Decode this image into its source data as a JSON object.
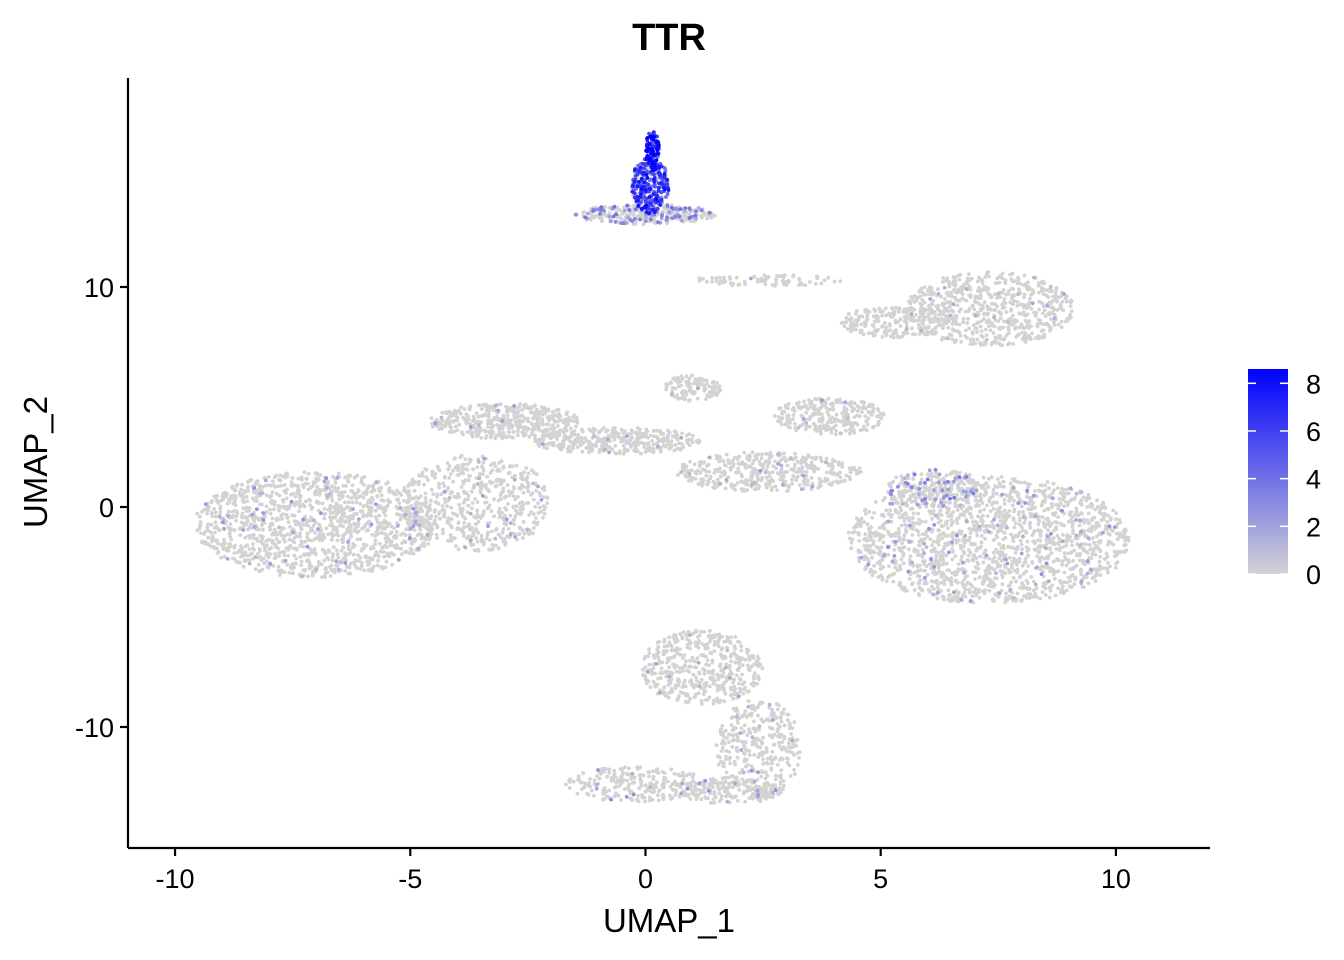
{
  "chart_data": {
    "type": "scatter",
    "title": "TTR",
    "xlabel": "UMAP_1",
    "ylabel": "UMAP_2",
    "xlim": [
      -11,
      12
    ],
    "ylim": [
      -15.5,
      19.5
    ],
    "x_ticks": [
      -10,
      -5,
      0,
      5,
      10
    ],
    "x_tick_labels": [
      "-10",
      "-5",
      "0",
      "5",
      "10"
    ],
    "y_ticks": [
      -10,
      0,
      10
    ],
    "y_tick_labels": [
      "-10",
      "0",
      "10"
    ],
    "grid": false,
    "legend": {
      "position": "right",
      "type": "colorbar",
      "min": 0,
      "max": 8.6,
      "ticks": [
        0,
        2,
        4,
        6,
        8
      ],
      "tick_labels": [
        "0",
        "2",
        "4",
        "6",
        "8"
      ],
      "color_low": "#d3d3d3",
      "color_high": "#0000ff"
    },
    "clusters": [
      {
        "cx": -7.0,
        "cy": -0.8,
        "rx": 2.6,
        "ry": 2.4,
        "n": 1300,
        "expr_frac": 0.05,
        "expr_mean": 1.8
      },
      {
        "cx": -3.6,
        "cy": 0.2,
        "rx": 1.6,
        "ry": 2.2,
        "n": 550,
        "expr_frac": 0.04,
        "expr_mean": 1.5
      },
      {
        "cx": -3.0,
        "cy": 3.9,
        "rx": 1.6,
        "ry": 0.8,
        "n": 420,
        "expr_frac": 0.03,
        "expr_mean": 1.6
      },
      {
        "cx": -0.6,
        "cy": 3.0,
        "rx": 1.8,
        "ry": 0.6,
        "n": 350,
        "expr_frac": 0.03,
        "expr_mean": 1.4
      },
      {
        "cx": 1.0,
        "cy": 5.4,
        "rx": 0.6,
        "ry": 0.6,
        "n": 110,
        "expr_frac": 0.02,
        "expr_mean": 1.4
      },
      {
        "cx": 2.6,
        "cy": 1.6,
        "rx": 2.0,
        "ry": 0.9,
        "n": 400,
        "expr_frac": 0.04,
        "expr_mean": 1.6
      },
      {
        "cx": 7.3,
        "cy": -1.5,
        "rx": 3.0,
        "ry": 2.9,
        "n": 1700,
        "expr_frac": 0.06,
        "expr_mean": 1.9
      },
      {
        "cx": 6.2,
        "cy": 0.8,
        "rx": 1.1,
        "ry": 0.9,
        "n": 200,
        "expr_frac": 0.18,
        "expr_mean": 2.6
      },
      {
        "cx": 3.9,
        "cy": 4.1,
        "rx": 1.2,
        "ry": 0.85,
        "n": 260,
        "expr_frac": 0.04,
        "expr_mean": 1.5
      },
      {
        "cx": 7.3,
        "cy": 9.0,
        "rx": 1.8,
        "ry": 1.7,
        "n": 650,
        "expr_frac": 0.03,
        "expr_mean": 1.4
      },
      {
        "cx": 5.3,
        "cy": 8.4,
        "rx": 1.2,
        "ry": 0.7,
        "n": 200,
        "expr_frac": 0.02,
        "expr_mean": 1.4
      },
      {
        "cx": 2.6,
        "cy": 10.3,
        "rx": 1.6,
        "ry": 0.25,
        "n": 80,
        "expr_frac": 0.02,
        "expr_mean": 1.4
      },
      {
        "cx": 1.2,
        "cy": -7.3,
        "rx": 1.3,
        "ry": 1.7,
        "n": 450,
        "expr_frac": 0.04,
        "expr_mean": 1.6
      },
      {
        "cx": 2.4,
        "cy": -11.0,
        "rx": 0.9,
        "ry": 2.3,
        "n": 330,
        "expr_frac": 0.04,
        "expr_mean": 1.6
      },
      {
        "cx": -0.2,
        "cy": -12.6,
        "rx": 1.5,
        "ry": 0.8,
        "n": 240,
        "expr_frac": 0.06,
        "expr_mean": 2.0
      },
      {
        "cx": 1.8,
        "cy": -12.9,
        "rx": 1.1,
        "ry": 0.6,
        "n": 170,
        "expr_frac": 0.05,
        "expr_mean": 1.8
      },
      {
        "cx": 0.0,
        "cy": 13.3,
        "rx": 1.5,
        "ry": 0.45,
        "n": 320,
        "expr_frac": 0.3,
        "expr_mean": 2.8
      },
      {
        "cx": 0.1,
        "cy": 14.6,
        "rx": 0.4,
        "ry": 1.3,
        "n": 300,
        "expr_frac": 0.85,
        "expr_mean": 5.5
      },
      {
        "cx": 0.15,
        "cy": 16.2,
        "rx": 0.15,
        "ry": 0.9,
        "n": 100,
        "expr_frac": 1.0,
        "expr_mean": 7.0
      }
    ]
  }
}
